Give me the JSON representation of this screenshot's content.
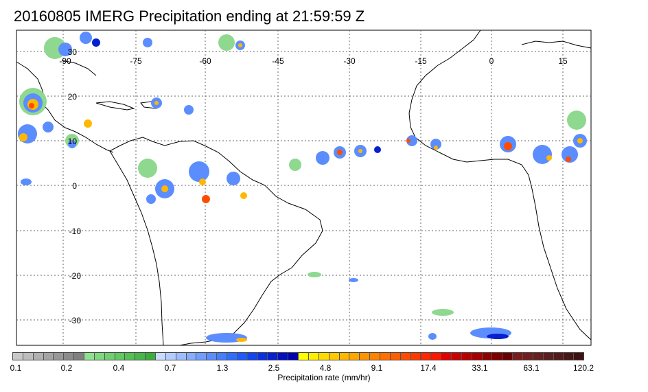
{
  "title": "20160805 IMERG Precipitation ending at 21:59:59 Z",
  "map": {
    "lon_labels": [
      "-90",
      "-75",
      "-60",
      "-45",
      "-30",
      "-15",
      "0",
      "15"
    ],
    "lat_labels": [
      "30",
      "20",
      "10",
      "0",
      "-10",
      "-20",
      "-30"
    ],
    "grid_style": "dotted"
  },
  "colorbar": {
    "title": "Precipitation rate (mm/hr)",
    "tick_labels": [
      "0.1",
      "0.2",
      "0.4",
      "0.7",
      "1.3",
      "2.5",
      "4.8",
      "9.1",
      "17.4",
      "33.1",
      "63.1",
      "120.2"
    ],
    "colors": [
      "#c8c8c8",
      "#bcbcbc",
      "#b0b0b0",
      "#a4a4a4",
      "#989898",
      "#8c8c8c",
      "#808080",
      "#8fe08f",
      "#7fd87f",
      "#70d070",
      "#62c862",
      "#55bf55",
      "#48b648",
      "#3cad3c",
      "#c9dcff",
      "#b3ccff",
      "#9dbdff",
      "#87adff",
      "#719dff",
      "#5b8dff",
      "#457dff",
      "#2f6dff",
      "#1f5aff",
      "#1244f0",
      "#0a30e0",
      "#0620d0",
      "#0410c0",
      "#0000b0",
      "#ffff00",
      "#ffee00",
      "#ffdc00",
      "#ffca00",
      "#ffb800",
      "#ffa600",
      "#ff9400",
      "#ff8200",
      "#ff7000",
      "#ff5e00",
      "#ff4c00",
      "#ff3a00",
      "#ff2800",
      "#ff1600",
      "#e00000",
      "#cc0000",
      "#b80000",
      "#a40000",
      "#900000",
      "#7c0000",
      "#680000",
      "#7a1c1c",
      "#702020",
      "#662020",
      "#5c1e1e",
      "#521a1a",
      "#481616",
      "#3e1212"
    ]
  },
  "precip_colors": {
    "light": "#8fd88f",
    "medium": "#5b8dff",
    "heavy": "#0620d0",
    "intense": "#ffb800",
    "extreme": "#ff4c00"
  }
}
